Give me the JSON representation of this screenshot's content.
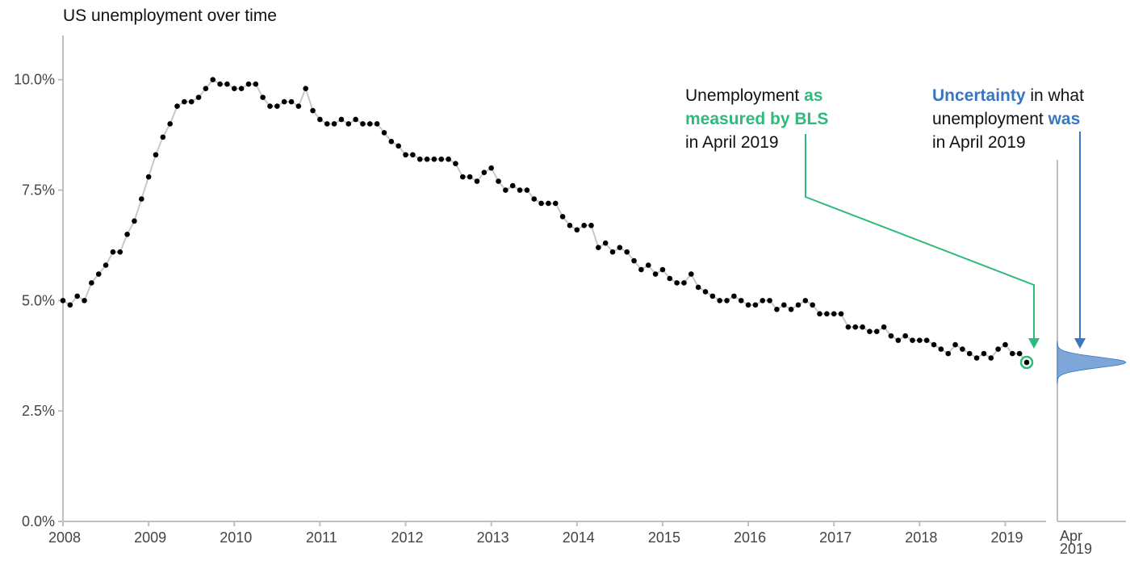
{
  "chart_data": {
    "type": "line",
    "title": "US unemployment over time",
    "xlabel": "",
    "ylabel": "",
    "grid": false,
    "ylim": [
      0,
      11
    ],
    "xlim": [
      "2008-01",
      "2019-04"
    ],
    "x_ticks": [
      "2008",
      "2009",
      "2010",
      "2011",
      "2012",
      "2013",
      "2014",
      "2015",
      "2016",
      "2017",
      "2018",
      "2019"
    ],
    "y_ticks": [
      "0.0%",
      "2.5%",
      "5.0%",
      "7.5%",
      "10.0%"
    ],
    "y_tick_values": [
      0,
      2.5,
      5,
      7.5,
      10
    ],
    "series": [
      {
        "start": "2008-01",
        "frequency": "monthly",
        "values": [
          5.0,
          4.9,
          5.1,
          5.0,
          5.4,
          5.6,
          5.8,
          6.1,
          6.1,
          6.5,
          6.8,
          7.3,
          7.8,
          8.3,
          8.7,
          9.0,
          9.4,
          9.5,
          9.5,
          9.6,
          9.8,
          10.0,
          9.9,
          9.9,
          9.8,
          9.8,
          9.9,
          9.9,
          9.6,
          9.4,
          9.4,
          9.5,
          9.5,
          9.4,
          9.8,
          9.3,
          9.1,
          9.0,
          9.0,
          9.1,
          9.0,
          9.1,
          9.0,
          9.0,
          9.0,
          8.8,
          8.6,
          8.5,
          8.3,
          8.3,
          8.2,
          8.2,
          8.2,
          8.2,
          8.2,
          8.1,
          7.8,
          7.8,
          7.7,
          7.9,
          8.0,
          7.7,
          7.5,
          7.6,
          7.5,
          7.5,
          7.3,
          7.2,
          7.2,
          7.2,
          6.9,
          6.7,
          6.6,
          6.7,
          6.7,
          6.2,
          6.3,
          6.1,
          6.2,
          6.1,
          5.9,
          5.7,
          5.8,
          5.6,
          5.7,
          5.5,
          5.4,
          5.4,
          5.6,
          5.3,
          5.2,
          5.1,
          5.0,
          5.0,
          5.1,
          5.0,
          4.9,
          4.9,
          5.0,
          5.0,
          4.8,
          4.9,
          4.8,
          4.9,
          5.0,
          4.9,
          4.7,
          4.7,
          4.7,
          4.7,
          4.4,
          4.4,
          4.4,
          4.3,
          4.3,
          4.4,
          4.2,
          4.1,
          4.2,
          4.1,
          4.1,
          4.1,
          4.0,
          3.9,
          3.8,
          4.0,
          3.9,
          3.8,
          3.7,
          3.8,
          3.7,
          3.9,
          4.0,
          3.8,
          3.8,
          3.6
        ]
      }
    ],
    "highlight": {
      "x": "2019-04",
      "y": 3.6
    },
    "uncertainty": {
      "x_label": [
        "Apr",
        "2019"
      ],
      "center": 3.6,
      "spread": 0.12
    },
    "annotations": {
      "measured": {
        "line1_plain": "Unemployment ",
        "line1_bold": "as",
        "line2_bold": "measured by BLS",
        "line3": "in April 2019"
      },
      "uncertainty": {
        "line1_bold": "Uncertainty",
        "line1_plain": " in what",
        "line2_plain": "unemployment ",
        "line2_bold": "was",
        "line3": "in April 2019"
      }
    },
    "colors": {
      "points": "#000000",
      "line": "#c8c8c8",
      "measured": "#2eba7a",
      "uncertainty": "#3a76bf",
      "density_fill": "#7ea6d8"
    }
  }
}
